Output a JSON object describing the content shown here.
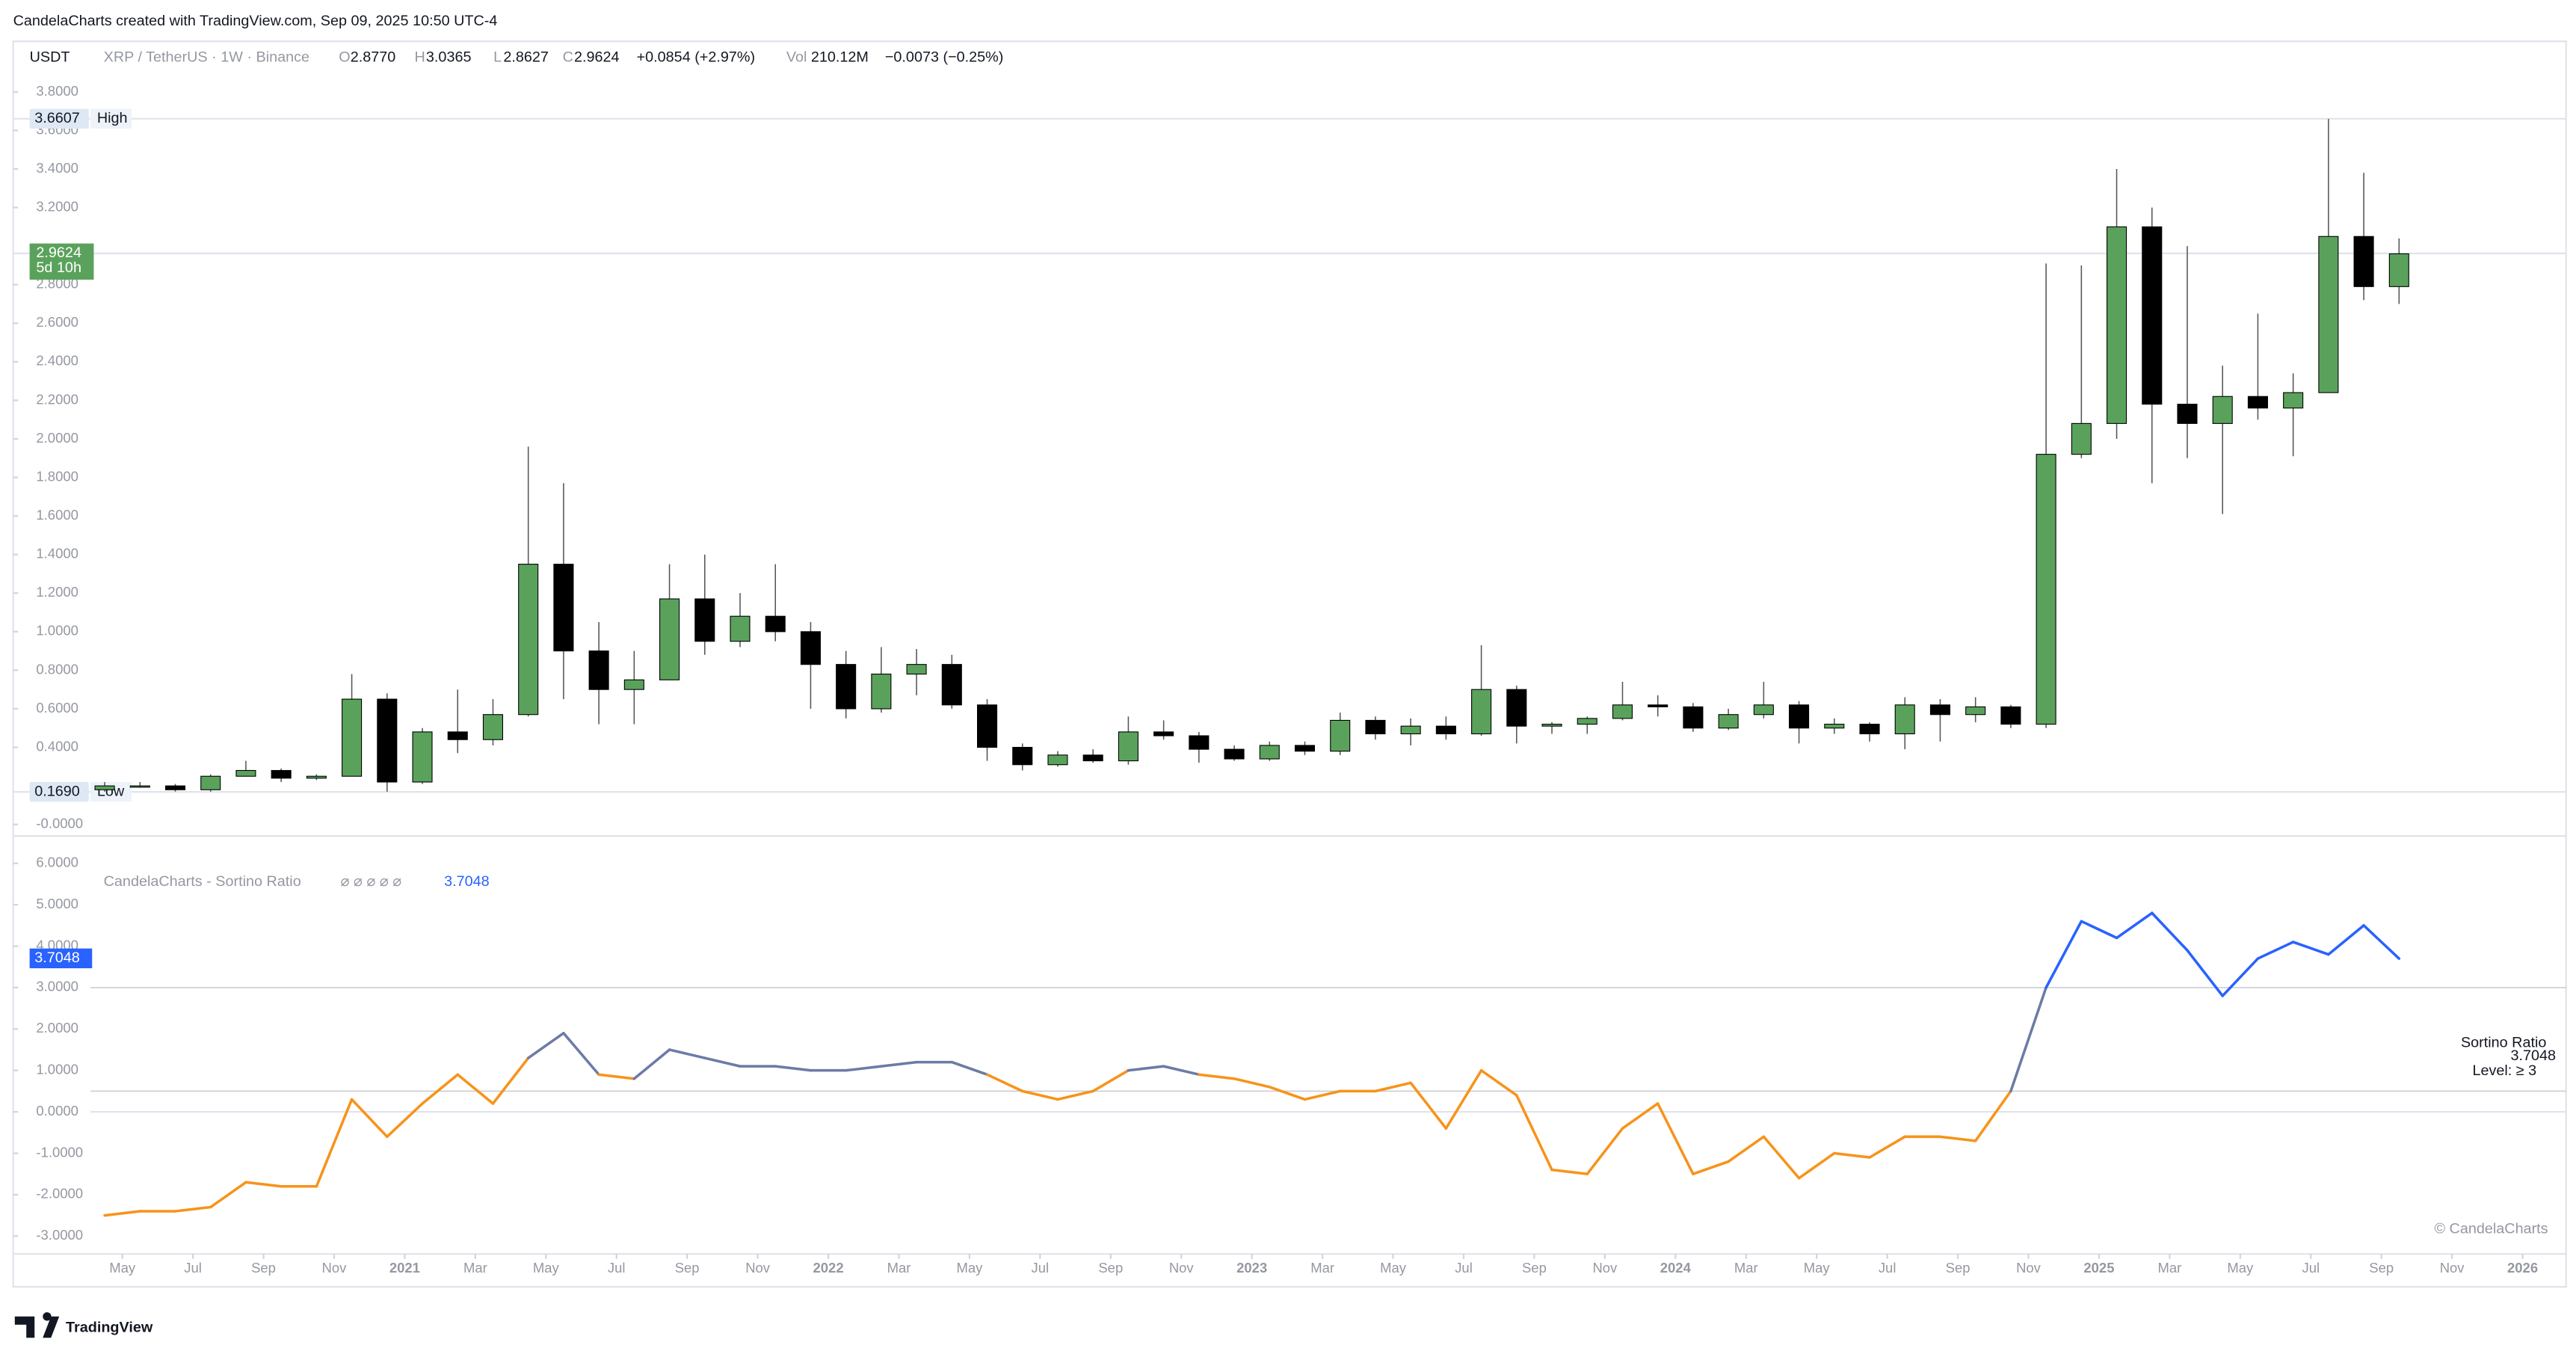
{
  "header": {
    "credit": "CandelaCharts created with TradingView.com, Sep 09, 2025 10:50 UTC-4",
    "currency": "USDT",
    "symbol": "XRP / TetherUS · 1W · Binance",
    "o_label": "O",
    "o": "2.8770",
    "h_label": "H",
    "h": "3.0365",
    "l_label": "L",
    "l": "2.8627",
    "c_label": "C",
    "c": "2.9624",
    "change": "+0.0854 (+2.97%)",
    "vol_label": "Vol",
    "vol": "210.12M",
    "vol_change": "−0.0073 (−0.25%)"
  },
  "footer": {
    "logo": "TradingView"
  },
  "chart_data": [
    {
      "type": "candlestick",
      "up_color": "#5aa25c",
      "down_color": "#000000",
      "x": [
        "2020-04",
        "2020-05",
        "2020-06",
        "2020-07",
        "2020-08",
        "2020-09",
        "2020-10",
        "2020-11",
        "2020-12",
        "2021-01",
        "2021-02",
        "2021-03",
        "2021-04",
        "2021-05",
        "2021-06",
        "2021-07",
        "2021-08",
        "2021-09",
        "2021-10",
        "2021-11",
        "2021-12",
        "2022-01",
        "2022-02",
        "2022-03",
        "2022-04",
        "2022-05",
        "2022-06",
        "2022-07",
        "2022-08",
        "2022-09",
        "2022-10",
        "2022-11",
        "2022-12",
        "2023-01",
        "2023-02",
        "2023-03",
        "2023-04",
        "2023-05",
        "2023-06",
        "2023-07",
        "2023-08",
        "2023-09",
        "2023-10",
        "2023-11",
        "2023-12",
        "2024-01",
        "2024-02",
        "2024-03",
        "2024-04",
        "2024-05",
        "2024-06",
        "2024-07",
        "2024-08",
        "2024-09",
        "2024-10",
        "2024-11",
        "2024-12",
        "2025-01",
        "2025-02",
        "2025-03",
        "2025-04",
        "2025-05",
        "2025-06",
        "2025-07",
        "2025-08",
        "2025-09"
      ],
      "open": [
        0.18,
        0.2,
        0.2,
        0.18,
        0.25,
        0.28,
        0.24,
        0.25,
        0.65,
        0.22,
        0.48,
        0.44,
        0.57,
        1.35,
        0.9,
        0.7,
        0.75,
        1.17,
        0.95,
        1.08,
        1.0,
        0.83,
        0.6,
        0.78,
        0.83,
        0.62,
        0.4,
        0.31,
        0.36,
        0.33,
        0.48,
        0.46,
        0.39,
        0.34,
        0.41,
        0.38,
        0.54,
        0.47,
        0.51,
        0.47,
        0.7,
        0.51,
        0.52,
        0.55,
        0.62,
        0.61,
        0.5,
        0.57,
        0.62,
        0.5,
        0.52,
        0.47,
        0.62,
        0.57,
        0.61,
        0.52,
        1.92,
        2.08,
        3.1,
        2.18,
        2.08,
        2.22,
        2.16,
        2.24,
        3.05,
        2.79
      ],
      "high": [
        0.22,
        0.22,
        0.21,
        0.26,
        0.33,
        0.29,
        0.26,
        0.78,
        0.68,
        0.5,
        0.7,
        0.65,
        1.96,
        1.77,
        1.05,
        0.9,
        1.35,
        1.4,
        1.2,
        1.35,
        1.05,
        0.9,
        0.92,
        0.91,
        0.88,
        0.65,
        0.42,
        0.38,
        0.39,
        0.56,
        0.54,
        0.48,
        0.41,
        0.43,
        0.43,
        0.58,
        0.56,
        0.55,
        0.56,
        0.93,
        0.72,
        0.53,
        0.56,
        0.74,
        0.67,
        0.63,
        0.6,
        0.74,
        0.64,
        0.55,
        0.53,
        0.66,
        0.65,
        0.66,
        0.62,
        2.91,
        2.9,
        3.4,
        3.2,
        3.0,
        2.38,
        2.65,
        2.34,
        3.66,
        3.38,
        3.04
      ],
      "low": [
        0.17,
        0.19,
        0.17,
        0.17,
        0.25,
        0.22,
        0.23,
        0.25,
        0.17,
        0.21,
        0.37,
        0.41,
        0.56,
        0.65,
        0.52,
        0.52,
        0.75,
        0.88,
        0.92,
        0.95,
        0.6,
        0.55,
        0.58,
        0.67,
        0.6,
        0.33,
        0.28,
        0.3,
        0.32,
        0.31,
        0.44,
        0.32,
        0.33,
        0.33,
        0.36,
        0.36,
        0.44,
        0.41,
        0.44,
        0.46,
        0.42,
        0.47,
        0.47,
        0.54,
        0.56,
        0.48,
        0.49,
        0.55,
        0.42,
        0.47,
        0.43,
        0.39,
        0.43,
        0.53,
        0.5,
        0.5,
        1.9,
        2.0,
        1.77,
        1.9,
        1.61,
        2.1,
        1.91,
        2.24,
        2.72,
        2.7
      ],
      "close": [
        0.2,
        0.2,
        0.18,
        0.25,
        0.28,
        0.24,
        0.25,
        0.65,
        0.22,
        0.48,
        0.44,
        0.57,
        1.35,
        0.9,
        0.7,
        0.75,
        1.17,
        0.95,
        1.08,
        1.0,
        0.83,
        0.6,
        0.78,
        0.83,
        0.62,
        0.4,
        0.31,
        0.36,
        0.33,
        0.48,
        0.46,
        0.39,
        0.34,
        0.41,
        0.38,
        0.54,
        0.47,
        0.51,
        0.47,
        0.7,
        0.51,
        0.52,
        0.55,
        0.62,
        0.61,
        0.5,
        0.57,
        0.62,
        0.5,
        0.52,
        0.47,
        0.62,
        0.57,
        0.61,
        0.52,
        1.92,
        2.08,
        3.1,
        2.18,
        2.08,
        2.22,
        2.16,
        2.24,
        3.05,
        2.79,
        2.96
      ],
      "xlim": [
        "2020-02",
        "2026-02"
      ],
      "xticks": [
        {
          "value": "2020-05",
          "label": "May"
        },
        {
          "value": "2020-07",
          "label": "Jul"
        },
        {
          "value": "2020-09",
          "label": "Sep"
        },
        {
          "value": "2020-11",
          "label": "Nov"
        },
        {
          "value": "2021-01",
          "label": "2021"
        },
        {
          "value": "2021-03",
          "label": "Mar"
        },
        {
          "value": "2021-05",
          "label": "May"
        },
        {
          "value": "2021-07",
          "label": "Jul"
        },
        {
          "value": "2021-09",
          "label": "Sep"
        },
        {
          "value": "2021-11",
          "label": "Nov"
        },
        {
          "value": "2022-01",
          "label": "2022"
        },
        {
          "value": "2022-03",
          "label": "Mar"
        },
        {
          "value": "2022-05",
          "label": "May"
        },
        {
          "value": "2022-07",
          "label": "Jul"
        },
        {
          "value": "2022-09",
          "label": "Sep"
        },
        {
          "value": "2022-11",
          "label": "Nov"
        },
        {
          "value": "2023-01",
          "label": "2023"
        },
        {
          "value": "2023-03",
          "label": "Mar"
        },
        {
          "value": "2023-05",
          "label": "May"
        },
        {
          "value": "2023-07",
          "label": "Jul"
        },
        {
          "value": "2023-09",
          "label": "Sep"
        },
        {
          "value": "2023-11",
          "label": "Nov"
        },
        {
          "value": "2024-01",
          "label": "2024"
        },
        {
          "value": "2024-03",
          "label": "Mar"
        },
        {
          "value": "2024-05",
          "label": "May"
        },
        {
          "value": "2024-07",
          "label": "Jul"
        },
        {
          "value": "2024-09",
          "label": "Sep"
        },
        {
          "value": "2024-11",
          "label": "Nov"
        },
        {
          "value": "2025-01",
          "label": "2025"
        },
        {
          "value": "2025-03",
          "label": "Mar"
        },
        {
          "value": "2025-05",
          "label": "May"
        },
        {
          "value": "2025-07",
          "label": "Jul"
        },
        {
          "value": "2025-09",
          "label": "Sep"
        },
        {
          "value": "2025-11",
          "label": "Nov"
        },
        {
          "value": "2026-01",
          "label": "2026"
        }
      ],
      "ylim": [
        -0.06,
        3.9
      ],
      "yticks": [
        {
          "value": 0,
          "label": "-0.0000"
        },
        {
          "value": 0.4,
          "label": "0.4000"
        },
        {
          "value": 0.6,
          "label": "0.6000"
        },
        {
          "value": 0.8,
          "label": "0.8000"
        },
        {
          "value": 1,
          "label": "1.0000"
        },
        {
          "value": 1.2,
          "label": "1.2000"
        },
        {
          "value": 1.4,
          "label": "1.4000"
        },
        {
          "value": 1.6,
          "label": "1.6000"
        },
        {
          "value": 1.8,
          "label": "1.8000"
        },
        {
          "value": 2,
          "label": "2.0000"
        },
        {
          "value": 2.2,
          "label": "2.2000"
        },
        {
          "value": 2.4,
          "label": "2.4000"
        },
        {
          "value": 2.6,
          "label": "2.6000"
        },
        {
          "value": 2.8,
          "label": "2.8000"
        },
        {
          "value": 3.2,
          "label": "3.2000"
        },
        {
          "value": 3.4,
          "label": "3.4000"
        },
        {
          "value": 3.6,
          "label": "3.6000"
        },
        {
          "value": 3.8,
          "label": "3.8000"
        }
      ],
      "high_mark": 3.6607,
      "high_text": "High",
      "low_mark": {
        "value": 0.169,
        "label": "0.1690"
      },
      "low_text": "Low",
      "last_price": 2.9624,
      "countdown": "5d 10h"
    },
    {
      "type": "line",
      "title": "CandelaCharts - Sortino Ratio",
      "inputs": "⌀ ⌀ ⌀ ⌀ ⌀",
      "last": 3.7048,
      "x": [
        "2020-04",
        "2020-05",
        "2020-06",
        "2020-07",
        "2020-08",
        "2020-09",
        "2020-10",
        "2020-11",
        "2020-12",
        "2021-01",
        "2021-02",
        "2021-03",
        "2021-04",
        "2021-05",
        "2021-06",
        "2021-07",
        "2021-08",
        "2021-09",
        "2021-10",
        "2021-11",
        "2021-12",
        "2022-01",
        "2022-02",
        "2022-03",
        "2022-04",
        "2022-05",
        "2022-06",
        "2022-07",
        "2022-08",
        "2022-09",
        "2022-10",
        "2022-11",
        "2022-12",
        "2023-01",
        "2023-02",
        "2023-03",
        "2023-04",
        "2023-05",
        "2023-06",
        "2023-07",
        "2023-08",
        "2023-09",
        "2023-10",
        "2023-11",
        "2023-12",
        "2024-01",
        "2024-02",
        "2024-03",
        "2024-04",
        "2024-05",
        "2024-06",
        "2024-07",
        "2024-08",
        "2024-09",
        "2024-10",
        "2024-11",
        "2024-12",
        "2025-01",
        "2025-02",
        "2025-03",
        "2025-04",
        "2025-05",
        "2025-06",
        "2025-07",
        "2025-08",
        "2025-09"
      ],
      "values": [
        -2.5,
        -2.4,
        -2.4,
        -2.3,
        -1.7,
        -1.8,
        -1.8,
        0.3,
        -0.6,
        0.2,
        0.9,
        0.2,
        1.3,
        1.9,
        0.9,
        0.8,
        1.5,
        1.3,
        1.1,
        1.1,
        1.0,
        1.0,
        1.1,
        1.2,
        1.2,
        0.9,
        0.5,
        0.3,
        0.5,
        1.0,
        1.1,
        0.9,
        0.8,
        0.6,
        0.3,
        0.5,
        0.5,
        0.7,
        -0.4,
        1.0,
        0.4,
        -1.4,
        -1.5,
        -0.4,
        0.2,
        -1.5,
        -1.2,
        -0.6,
        -1.6,
        -1.0,
        -1.1,
        -0.6,
        -0.6,
        -0.7,
        0.5,
        3.0,
        4.6,
        4.2,
        4.8,
        3.9,
        2.8,
        3.7,
        4.1,
        3.8,
        4.5,
        3.7
      ],
      "zone_breaks": [
        1,
        3
      ],
      "color_low": "#f7931a",
      "color_mid": "#6c7ba6",
      "color_high": "#2962ff",
      "levels": [
        3,
        0.5
      ],
      "ylim": [
        -3.35,
        6.5
      ],
      "yticks": [
        {
          "value": -3,
          "label": "-3.0000"
        },
        {
          "value": -2,
          "label": "-2.0000"
        },
        {
          "value": -1,
          "label": "-1.0000"
        },
        {
          "value": 0,
          "label": "0.0000"
        },
        {
          "value": 1,
          "label": "1.0000"
        },
        {
          "value": 2,
          "label": "2.0000"
        },
        {
          "value": 3,
          "label": "3.0000"
        },
        {
          "value": 4,
          "label": "4.0000"
        },
        {
          "value": 5,
          "label": "5.0000"
        },
        {
          "value": 6,
          "label": "6.0000"
        }
      ],
      "note_title": "Sortino Ratio",
      "note_level": "Level: ≥ 3",
      "copyright": "© CandelaCharts"
    }
  ]
}
